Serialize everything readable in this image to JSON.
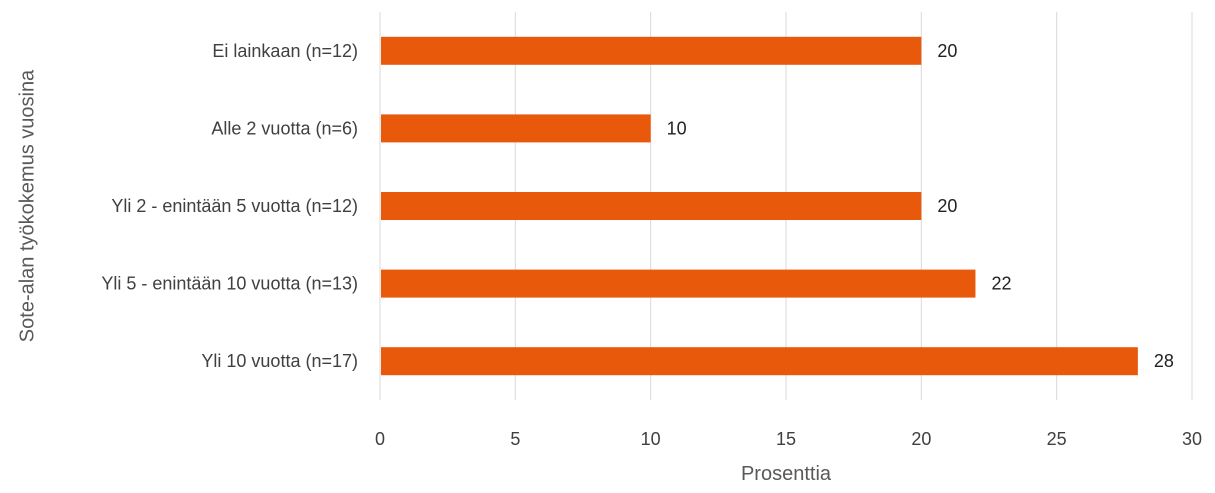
{
  "chart_data": {
    "type": "bar",
    "orientation": "horizontal",
    "categories": [
      "Ei lainkaan (n=12)",
      "Alle 2 vuotta (n=6)",
      "Yli 2 - enintään 5 vuotta (n=12)",
      "Yli 5 - enintään 10 vuotta (n=13)",
      "Yli 10 vuotta (n=17)"
    ],
    "values": [
      20,
      10,
      20,
      22,
      28
    ],
    "data_labels": [
      "20",
      "10",
      "20",
      "22",
      "28"
    ],
    "xlabel": "Prosenttia",
    "ylabel": "Sote-alan työkokemus vuosina",
    "xlim": [
      0,
      30
    ],
    "xticks": [
      0,
      5,
      10,
      15,
      20,
      25,
      30
    ],
    "xtick_labels": [
      "0",
      "5",
      "10",
      "15",
      "20",
      "25",
      "30"
    ],
    "grid": "vertical",
    "legend": "none",
    "colors": {
      "bar": "#E8590C",
      "grid": "#D9D9D9"
    }
  }
}
